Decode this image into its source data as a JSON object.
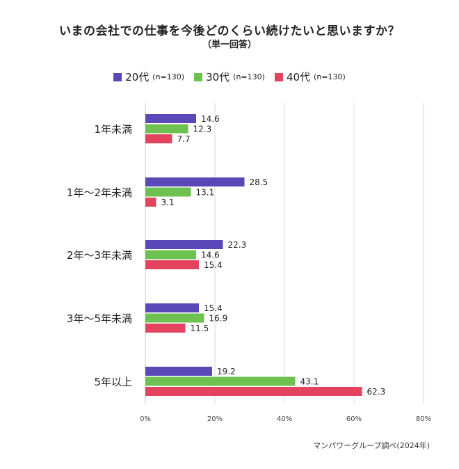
{
  "title": "いまの会社での仕事を今後どのくらい続けたいと思いますか？",
  "subtitle": "（単一回答）",
  "legend": [
    {
      "label": "20代",
      "n": "(n=130)",
      "color": "#5b48b8"
    },
    {
      "label": "30代",
      "n": "(n=130)",
      "color": "#6cc150"
    },
    {
      "label": "40代",
      "n": "(n=130)",
      "color": "#e4435f"
    }
  ],
  "source": "マンパワーグループ調べ(2024年)",
  "chart_data": {
    "type": "bar",
    "orientation": "horizontal",
    "categories": [
      "1年未満",
      "1年〜2年未満",
      "2年〜3年未満",
      "3年〜5年未満",
      "5年以上"
    ],
    "series": [
      {
        "name": "20代",
        "values": [
          14.6,
          28.5,
          22.3,
          15.4,
          19.2
        ],
        "color": "#5b48b8"
      },
      {
        "name": "30代",
        "values": [
          12.3,
          13.1,
          14.6,
          16.9,
          43.1
        ],
        "color": "#6cc150"
      },
      {
        "name": "40代",
        "values": [
          7.7,
          3.1,
          15.4,
          11.5,
          62.3
        ],
        "color": "#e4435f"
      }
    ],
    "xlim": [
      0,
      80
    ],
    "xticks": [
      "0%",
      "20%",
      "40%",
      "60%",
      "80%"
    ],
    "grid": true,
    "legend_position": "top"
  }
}
